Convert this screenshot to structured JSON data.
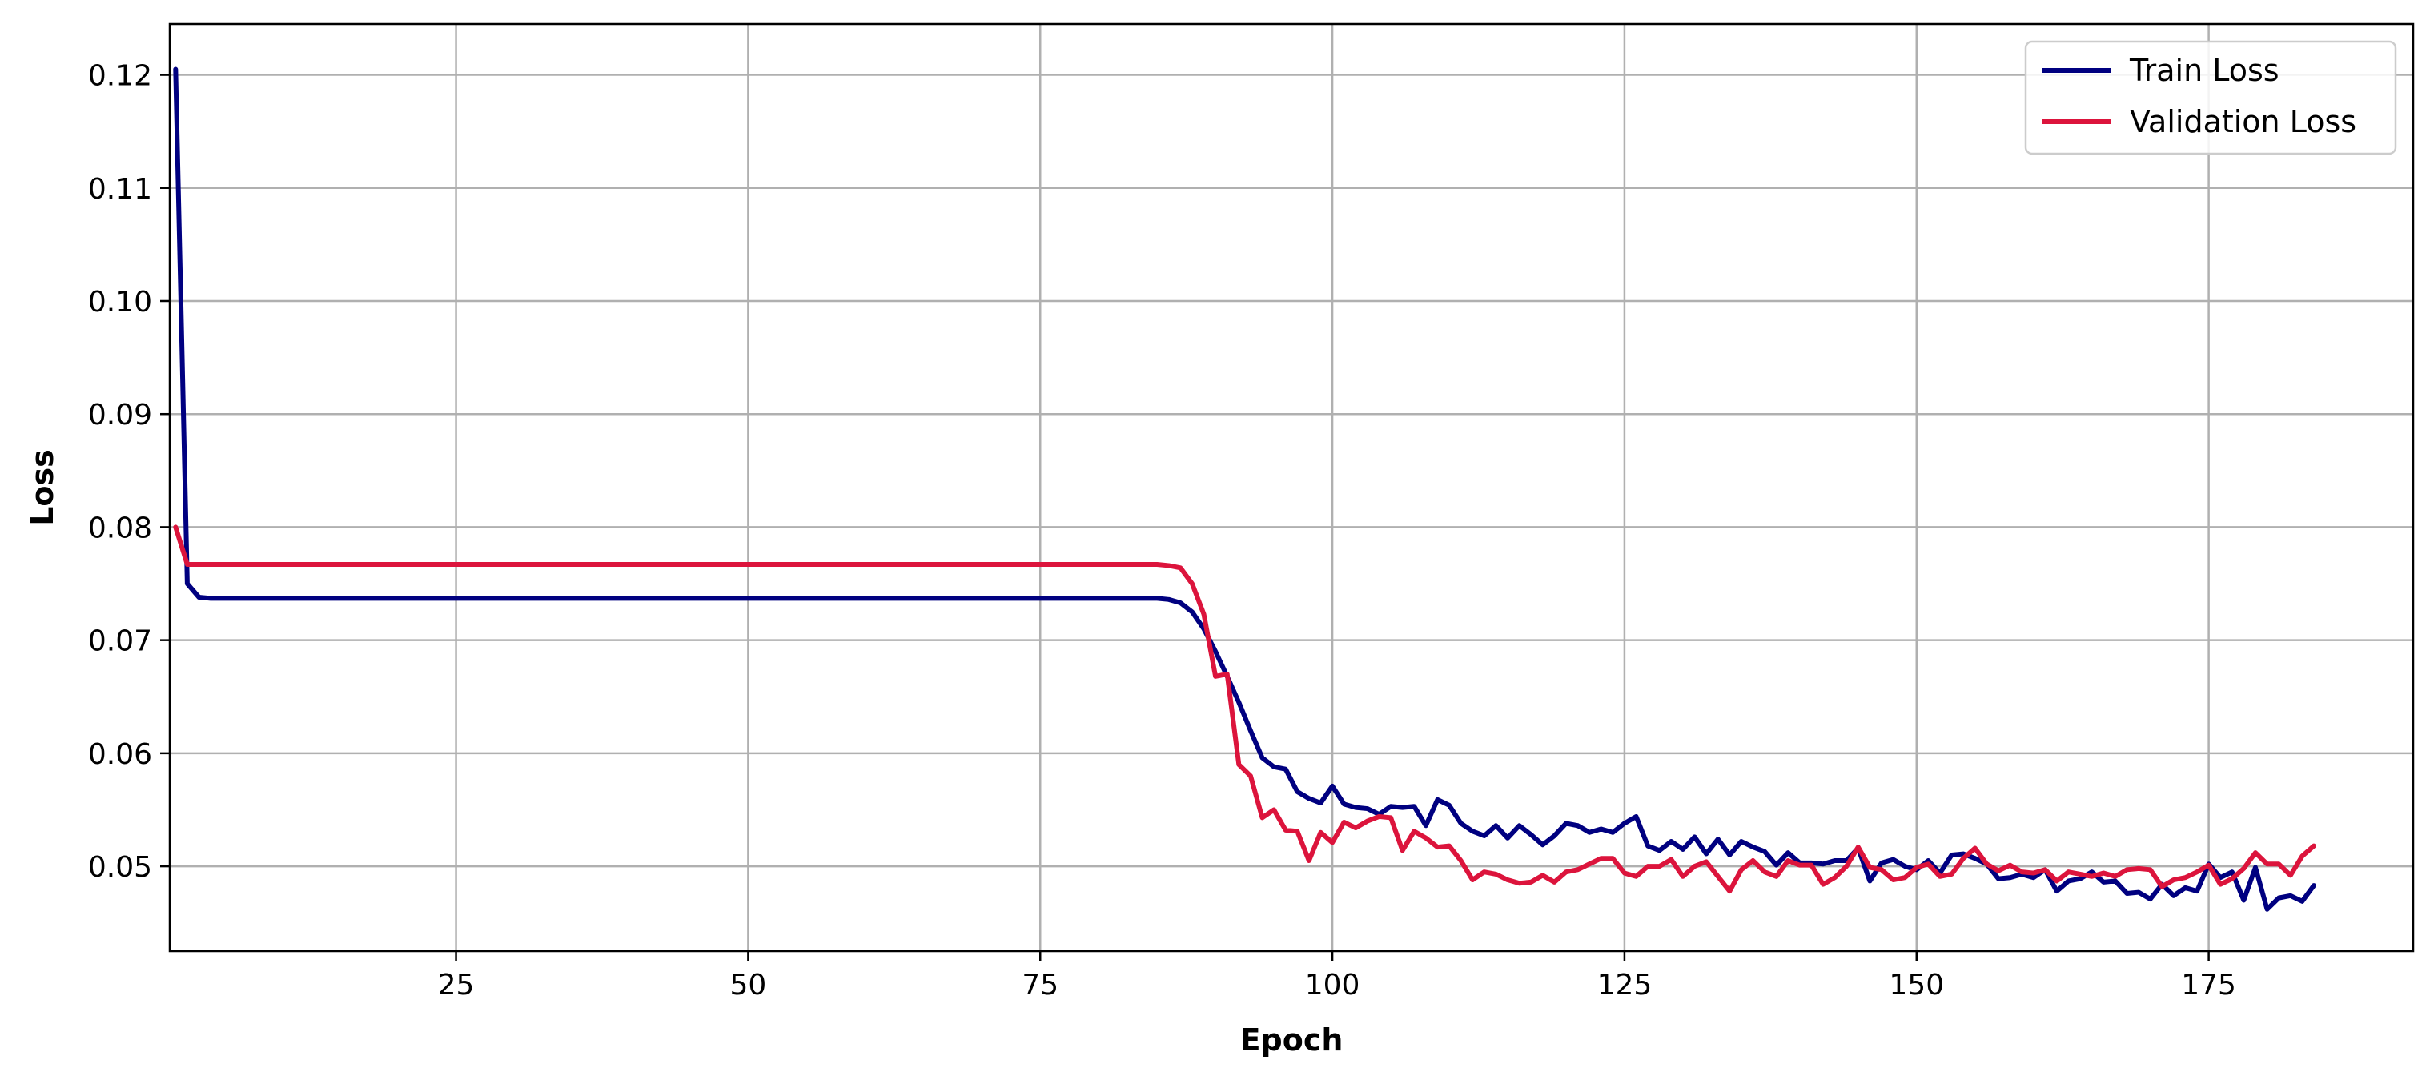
{
  "chart_data": {
    "type": "line",
    "title": "",
    "xlabel": "Epoch",
    "ylabel": "Loss",
    "xlim": [
      0.5,
      192.5
    ],
    "ylim": [
      0.0425,
      0.1245
    ],
    "xticks": [
      25,
      50,
      75,
      100,
      125,
      150,
      175
    ],
    "yticks": [
      0.05,
      0.06,
      0.07,
      0.08,
      0.09,
      0.1,
      0.11,
      0.12
    ],
    "ytick_labels": [
      "0.05",
      "0.06",
      "0.07",
      "0.08",
      "0.09",
      "0.10",
      "0.11",
      "0.12"
    ],
    "grid": true,
    "legend_position": "top-right",
    "x_start": 1,
    "series": [
      {
        "name": "Train Loss",
        "color": "#000080",
        "values": [
          0.1205,
          0.075,
          0.0738,
          0.0737,
          0.0737,
          0.0737,
          0.0737,
          0.0737,
          0.0737,
          0.0737,
          0.0737,
          0.0737,
          0.0737,
          0.0737,
          0.0737,
          0.0737,
          0.0737,
          0.0737,
          0.0737,
          0.0737,
          0.0737,
          0.0737,
          0.0737,
          0.0737,
          0.0737,
          0.0737,
          0.0737,
          0.0737,
          0.0737,
          0.0737,
          0.0737,
          0.0737,
          0.0737,
          0.0737,
          0.0737,
          0.0737,
          0.0737,
          0.0737,
          0.0737,
          0.0737,
          0.0737,
          0.0737,
          0.0737,
          0.0737,
          0.0737,
          0.0737,
          0.0737,
          0.0737,
          0.0737,
          0.0737,
          0.0737,
          0.0737,
          0.0737,
          0.0737,
          0.0737,
          0.0737,
          0.0737,
          0.0737,
          0.0737,
          0.0737,
          0.0737,
          0.0737,
          0.0737,
          0.0737,
          0.0737,
          0.0737,
          0.0737,
          0.0737,
          0.0737,
          0.0737,
          0.0737,
          0.0737,
          0.0737,
          0.0737,
          0.0737,
          0.0737,
          0.0737,
          0.0737,
          0.0737,
          0.0737,
          0.0737,
          0.0737,
          0.0737,
          0.0737,
          0.0737,
          0.0736,
          0.0733,
          0.0725,
          0.071,
          0.069,
          0.0668,
          0.0645,
          0.062,
          0.0596,
          0.0588,
          0.0586,
          0.0566,
          0.056,
          0.0556,
          0.0571,
          0.0555,
          0.0552,
          0.0551,
          0.0546,
          0.0553,
          0.0552,
          0.0553,
          0.0536,
          0.0559,
          0.0554,
          0.0538,
          0.0531,
          0.0527,
          0.0536,
          0.0525,
          0.0536,
          0.0528,
          0.0519,
          0.0527,
          0.0538,
          0.0536,
          0.053,
          0.0533,
          0.053,
          0.0538,
          0.0544,
          0.0518,
          0.0514,
          0.0522,
          0.0515,
          0.0526,
          0.0511,
          0.0524,
          0.051,
          0.0522,
          0.0517,
          0.0513,
          0.0501,
          0.0512,
          0.0503,
          0.0503,
          0.0502,
          0.0505,
          0.0505,
          0.0516,
          0.0487,
          0.0503,
          0.0506,
          0.05,
          0.0497,
          0.0505,
          0.0494,
          0.051,
          0.0511,
          0.0507,
          0.0502,
          0.0489,
          0.049,
          0.0493,
          0.049,
          0.0497,
          0.0478,
          0.0487,
          0.0489,
          0.0495,
          0.0486,
          0.0487,
          0.0476,
          0.0477,
          0.0471,
          0.0484,
          0.0474,
          0.0481,
          0.0478,
          0.0502,
          0.049,
          0.0495,
          0.047,
          0.0499,
          0.0462,
          0.0472,
          0.0474,
          0.0469,
          0.0483
        ]
      },
      {
        "name": "Validation Loss",
        "color": "#dc143c",
        "values": [
          0.08,
          0.0767,
          0.0767,
          0.0767,
          0.0767,
          0.0767,
          0.0767,
          0.0767,
          0.0767,
          0.0767,
          0.0767,
          0.0767,
          0.0767,
          0.0767,
          0.0767,
          0.0767,
          0.0767,
          0.0767,
          0.0767,
          0.0767,
          0.0767,
          0.0767,
          0.0767,
          0.0767,
          0.0767,
          0.0767,
          0.0767,
          0.0767,
          0.0767,
          0.0767,
          0.0767,
          0.0767,
          0.0767,
          0.0767,
          0.0767,
          0.0767,
          0.0767,
          0.0767,
          0.0767,
          0.0767,
          0.0767,
          0.0767,
          0.0767,
          0.0767,
          0.0767,
          0.0767,
          0.0767,
          0.0767,
          0.0767,
          0.0767,
          0.0767,
          0.0767,
          0.0767,
          0.0767,
          0.0767,
          0.0767,
          0.0767,
          0.0767,
          0.0767,
          0.0767,
          0.0767,
          0.0767,
          0.0767,
          0.0767,
          0.0767,
          0.0767,
          0.0767,
          0.0767,
          0.0767,
          0.0767,
          0.0767,
          0.0767,
          0.0767,
          0.0767,
          0.0767,
          0.0767,
          0.0767,
          0.0767,
          0.0767,
          0.0767,
          0.0767,
          0.0767,
          0.0767,
          0.0767,
          0.0767,
          0.0766,
          0.0764,
          0.075,
          0.0723,
          0.0668,
          0.067,
          0.059,
          0.058,
          0.0543,
          0.055,
          0.0532,
          0.0531,
          0.0505,
          0.053,
          0.0521,
          0.0539,
          0.0534,
          0.054,
          0.0544,
          0.0543,
          0.0514,
          0.0531,
          0.0525,
          0.0517,
          0.0518,
          0.0505,
          0.0488,
          0.0495,
          0.0493,
          0.0488,
          0.0485,
          0.0486,
          0.0492,
          0.0486,
          0.0495,
          0.0497,
          0.0502,
          0.0507,
          0.0507,
          0.0494,
          0.0491,
          0.05,
          0.05,
          0.0506,
          0.0491,
          0.05,
          0.0504,
          0.0491,
          0.0478,
          0.0497,
          0.0505,
          0.0495,
          0.0491,
          0.0505,
          0.0501,
          0.0501,
          0.0484,
          0.049,
          0.05,
          0.0517,
          0.0499,
          0.0497,
          0.0488,
          0.049,
          0.0499,
          0.0502,
          0.0491,
          0.0493,
          0.0507,
          0.0516,
          0.0502,
          0.0496,
          0.0501,
          0.0495,
          0.0494,
          0.0497,
          0.0487,
          0.0495,
          0.0493,
          0.0491,
          0.0494,
          0.0491,
          0.0497,
          0.0498,
          0.0497,
          0.0482,
          0.0488,
          0.049,
          0.0495,
          0.0501,
          0.0484,
          0.0489,
          0.0498,
          0.0512,
          0.0502,
          0.0502,
          0.0492,
          0.0509,
          0.0518
        ]
      }
    ]
  }
}
